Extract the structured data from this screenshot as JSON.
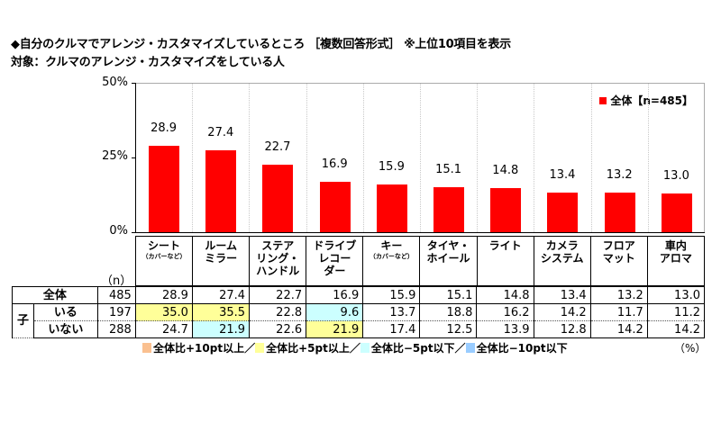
{
  "title": "◆自分のクルマでアレンジ・カスタマイズしているところ ［複数回答形式］ ※上位10項目を表示",
  "subtitle": "対象：クルマのアレンジ・カスタマイズをしている人",
  "legend": {
    "label": "全体【n=485】",
    "color": "#ff0000"
  },
  "yaxis": {
    "ticks": [
      "50%",
      "25%",
      "0%"
    ]
  },
  "n_header": "（n）",
  "categories": [
    {
      "main": "シート",
      "sub": "（カバーなど）"
    },
    {
      "main": "ルーム\nミラー",
      "sub": ""
    },
    {
      "main": "ステア\nリング・\nハンドル",
      "sub": ""
    },
    {
      "main": "ドライブ\nレコー\nダー",
      "sub": ""
    },
    {
      "main": "キー",
      "sub": "（カバーなど）"
    },
    {
      "main": "タイヤ・\nホイール",
      "sub": ""
    },
    {
      "main": "ライト",
      "sub": ""
    },
    {
      "main": "カメラ\nシステム",
      "sub": ""
    },
    {
      "main": "フロア\nマット",
      "sub": ""
    },
    {
      "main": "車内\nアロマ",
      "sub": ""
    }
  ],
  "table": {
    "group_label": "子",
    "rows": [
      {
        "label": "全体",
        "n": "485",
        "values": [
          "28.9",
          "27.4",
          "22.7",
          "16.9",
          "15.9",
          "15.1",
          "14.8",
          "13.4",
          "13.2",
          "13.0"
        ],
        "highlights": [
          "",
          "",
          "",
          "",
          "",
          "",
          "",
          "",
          "",
          ""
        ]
      },
      {
        "label": "いる",
        "n": "197",
        "values": [
          "35.0",
          "35.5",
          "22.8",
          "9.6",
          "13.7",
          "18.8",
          "16.2",
          "14.2",
          "11.7",
          "11.2"
        ],
        "highlights": [
          "yellow",
          "yellow",
          "",
          "cyan",
          "",
          "",
          "",
          "",
          "",
          ""
        ]
      },
      {
        "label": "いない",
        "n": "288",
        "values": [
          "24.7",
          "21.9",
          "22.6",
          "21.9",
          "17.4",
          "12.5",
          "13.9",
          "12.8",
          "14.2",
          "14.2"
        ],
        "highlights": [
          "",
          "cyan",
          "",
          "yellow",
          "",
          "",
          "",
          "",
          "",
          ""
        ]
      }
    ]
  },
  "key": [
    {
      "label": "全体比+10pt以上／",
      "color": "#fac090"
    },
    {
      "label": "全体比+5pt以上／",
      "color": "#ffff99"
    },
    {
      "label": "全体比−5pt以下／",
      "color": "#ccffff"
    },
    {
      "label": "全体比−10pt以下",
      "color": "#99ccff"
    }
  ],
  "unit": "（%）",
  "chart_data": {
    "type": "bar",
    "title": "自分のクルマでアレンジ・カスタマイズしているところ［複数回答形式］※上位10項目を表示",
    "subtitle": "対象：クルマのアレンジ・カスタマイズをしている人",
    "categories": [
      "シート（カバーなど）",
      "ルームミラー",
      "ステアリング・ハンドル",
      "ドライブレコーダー",
      "キー（カバーなど）",
      "タイヤ・ホイール",
      "ライト",
      "カメラシステム",
      "フロアマット",
      "車内アロマ"
    ],
    "series": [
      {
        "name": "全体【n=485】",
        "values": [
          28.9,
          27.4,
          22.7,
          16.9,
          15.9,
          15.1,
          14.8,
          13.4,
          13.2,
          13.0
        ]
      }
    ],
    "table_series": [
      {
        "name": "子 いる",
        "n": 197,
        "values": [
          35.0,
          35.5,
          22.8,
          9.6,
          13.7,
          18.8,
          16.2,
          14.2,
          11.7,
          11.2
        ]
      },
      {
        "name": "子 いない",
        "n": 288,
        "values": [
          24.7,
          21.9,
          22.6,
          21.9,
          17.4,
          12.5,
          13.9,
          12.8,
          14.2,
          14.2
        ]
      }
    ],
    "xlabel": "",
    "ylabel": "",
    "ylim": [
      0,
      50
    ],
    "yticks": [
      "0%",
      "25%",
      "50%"
    ],
    "grid": true,
    "legend_position": "top-right",
    "unit": "%"
  }
}
